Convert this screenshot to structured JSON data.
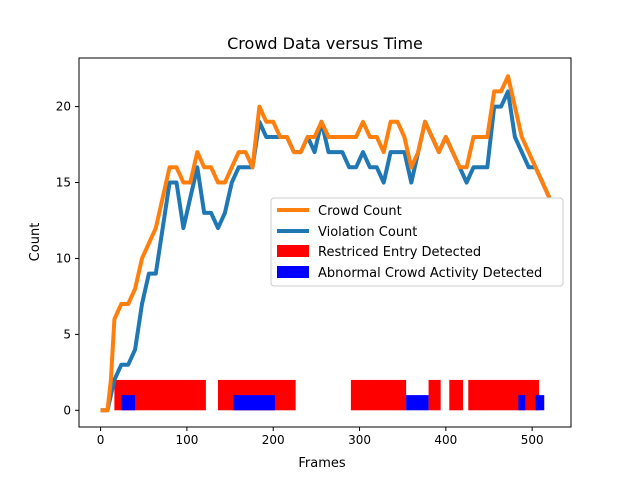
{
  "chart_data": {
    "type": "line",
    "title": "Crowd Data versus Time",
    "xlabel": "Frames",
    "ylabel": "Count",
    "xlim": [
      -25,
      545
    ],
    "ylim": [
      -1.1,
      23.2
    ],
    "xticks": [
      0,
      100,
      200,
      300,
      400,
      500
    ],
    "yticks": [
      0,
      5,
      10,
      15,
      20
    ],
    "grid": false,
    "legend_position": "center-right",
    "series": [
      {
        "name": "Crowd Count",
        "color": "#ff7f0e",
        "x": [
          0,
          8,
          12,
          16,
          24,
          32,
          40,
          48,
          56,
          64,
          72,
          80,
          88,
          96,
          104,
          112,
          120,
          128,
          136,
          144,
          152,
          160,
          168,
          176,
          184,
          192,
          200,
          208,
          216,
          224,
          232,
          240,
          248,
          256,
          264,
          272,
          280,
          288,
          296,
          304,
          312,
          320,
          328,
          336,
          344,
          352,
          360,
          368,
          376,
          384,
          392,
          400,
          408,
          416,
          424,
          432,
          440,
          448,
          456,
          464,
          472,
          480,
          488,
          496,
          504,
          512,
          520
        ],
        "y": [
          0,
          0,
          2,
          6,
          7,
          7,
          8,
          10,
          11,
          12,
          14,
          16,
          16,
          15,
          15,
          17,
          16,
          16,
          15,
          15,
          16,
          17,
          17,
          16,
          20,
          19,
          19,
          18,
          18,
          17,
          17,
          18,
          18,
          19,
          18,
          18,
          18,
          18,
          18,
          19,
          18,
          18,
          17,
          19,
          19,
          18,
          16,
          17,
          19,
          18,
          17,
          18,
          17,
          16,
          16,
          18,
          18,
          18,
          21,
          21,
          22,
          20,
          18,
          17,
          16,
          15,
          14
        ]
      },
      {
        "name": "Violation Count",
        "color": "#1f77b4",
        "x": [
          0,
          8,
          12,
          16,
          24,
          32,
          40,
          48,
          56,
          64,
          72,
          80,
          88,
          96,
          104,
          112,
          120,
          128,
          136,
          144,
          152,
          160,
          168,
          176,
          184,
          192,
          200,
          208,
          216,
          224,
          232,
          240,
          248,
          256,
          264,
          272,
          280,
          288,
          296,
          304,
          312,
          320,
          328,
          336,
          344,
          352,
          360,
          368,
          376,
          384,
          392,
          400,
          408,
          416,
          424,
          432,
          440,
          448,
          456,
          464,
          472,
          480,
          488,
          496,
          504,
          512,
          520
        ],
        "y": [
          0,
          0,
          1,
          2,
          3,
          3,
          4,
          7,
          9,
          9,
          12,
          15,
          15,
          12,
          14,
          16,
          13,
          13,
          12,
          13,
          15,
          16,
          16,
          16,
          19,
          18,
          18,
          18,
          18,
          17,
          17,
          18,
          17,
          19,
          17,
          17,
          17,
          16,
          16,
          17,
          16,
          16,
          15,
          17,
          17,
          17,
          15,
          17,
          19,
          18,
          17,
          18,
          17,
          16,
          15,
          16,
          16,
          16,
          20,
          20,
          21,
          18,
          17,
          16,
          16,
          15,
          14
        ]
      }
    ],
    "bands": [
      {
        "name": "Restriced Entry Detected",
        "color": "#ff0000",
        "y_range": [
          0,
          2
        ],
        "intervals": [
          [
            16,
            122
          ],
          [
            136,
            226
          ],
          [
            290,
            354
          ],
          [
            380,
            394
          ],
          [
            404,
            420
          ],
          [
            426,
            508
          ]
        ]
      },
      {
        "name": "Abnormal Crowd Activity Detected",
        "color": "#0000ff",
        "y_range": [
          0,
          1
        ],
        "intervals": [
          [
            24,
            40
          ],
          [
            154,
            202
          ],
          [
            354,
            380
          ],
          [
            484,
            492
          ],
          [
            504,
            514
          ]
        ]
      }
    ]
  }
}
